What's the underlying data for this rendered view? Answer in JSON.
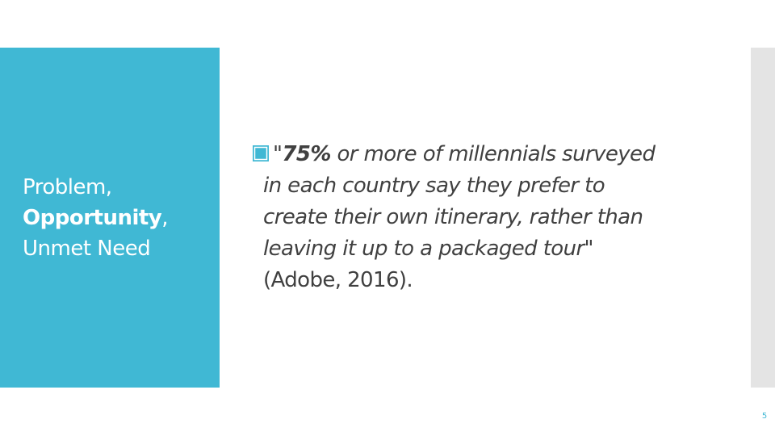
{
  "side": {
    "line1": "Problem,",
    "line2_bold": "Opportunity",
    "line2_rest": ",",
    "line3": "Unmet Need"
  },
  "quote": {
    "open_mark": "\"",
    "highlight": "75%",
    "line1_rest": " or more of millennials surveyed",
    "line2": "in each country say they prefer to",
    "line3": "create their own itinerary, rather than",
    "line4": "leaving it up to a packaged tour\"",
    "citation": "(Adobe, 2016)."
  },
  "footer": {
    "page_number": "5"
  },
  "colors": {
    "accent": "#40b8d4",
    "text": "#404040",
    "right_bar": "#e4e4e4"
  }
}
